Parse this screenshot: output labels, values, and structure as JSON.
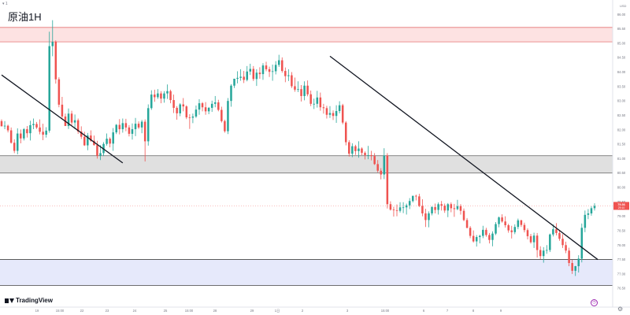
{
  "header": {
    "title": "原油1H",
    "mini_label": "▾ 1",
    "unit": "USD"
  },
  "watermark": {
    "text": "TradingView"
  },
  "icons": {
    "settings": "gear-icon",
    "time": "clock-icon"
  },
  "colors": {
    "up": "#26a69a",
    "down": "#ef5350",
    "red_zone_fill": "#fde2e2",
    "grey_zone_fill": "#e0e0e0",
    "blue_zone_fill": "#e6e9fb",
    "trendline": "#131722",
    "price_marker": "#ef5350"
  },
  "chart_data": {
    "type": "candlestick",
    "title": "原油1H",
    "ylim": [
      75.85,
      86.5
    ],
    "y_ticks": [
      "86.00",
      "85.50",
      "85.00",
      "84.50",
      "84.00",
      "83.50",
      "83.00",
      "82.50",
      "82.00",
      "81.50",
      "81.00",
      "80.50",
      "80.00",
      "79.50",
      "79.00",
      "78.50",
      "78.00",
      "77.50",
      "77.00",
      "76.50"
    ],
    "x_ticks": [
      "19",
      "15:00",
      "22",
      "23",
      "24",
      "25",
      "15:00",
      "28",
      "29",
      "1日",
      "2",
      "3",
      "15:00",
      "6",
      "7",
      "8",
      "9"
    ],
    "last_price": [
      "79.36",
      "29:10"
    ],
    "zones": [
      {
        "name": "resistance",
        "from": 85.05,
        "to": 85.55
      },
      {
        "name": "middle",
        "from": 80.5,
        "to": 81.1
      },
      {
        "name": "support",
        "from": 76.6,
        "to": 77.5
      }
    ],
    "trendlines": [
      {
        "from": {
          "x": "18",
          "y": 83.9
        },
        "to": {
          "x": "22",
          "y": 80.85
        }
      },
      {
        "from": {
          "x": "25",
          "y": 84.55
        },
        "to": {
          "x": "6",
          "y": 77.5
        }
      }
    ],
    "candles": [
      [
        82.3,
        82.36,
        82.12,
        82.12
      ],
      [
        82.12,
        82.3,
        82.02,
        82.14
      ],
      [
        82.14,
        82.18,
        81.91,
        81.98
      ],
      [
        81.98,
        82.08,
        81.52,
        81.55
      ],
      [
        81.55,
        81.67,
        81.19,
        81.27
      ],
      [
        81.27,
        82.05,
        81.15,
        81.87
      ],
      [
        81.87,
        82.01,
        81.53,
        81.7
      ],
      [
        81.7,
        82.06,
        81.63,
        82.02
      ],
      [
        82.02,
        82.13,
        81.73,
        81.88
      ],
      [
        81.88,
        82.31,
        81.63,
        82.16
      ],
      [
        82.16,
        82.39,
        82.02,
        82.2
      ],
      [
        82.2,
        82.27,
        82.03,
        82.08
      ],
      [
        82.08,
        82.36,
        81.84,
        81.93
      ],
      [
        81.93,
        82.21,
        81.64,
        81.83
      ],
      [
        81.83,
        82.09,
        81.73,
        81.97
      ],
      [
        81.97,
        85.4,
        81.9,
        84.9
      ],
      [
        84.9,
        85.8,
        84.55,
        85.05
      ],
      [
        85.05,
        85.1,
        83.6,
        83.75
      ],
      [
        83.75,
        83.82,
        82.78,
        82.87
      ],
      [
        82.87,
        83.14,
        82.37,
        82.46
      ],
      [
        82.46,
        82.56,
        82.13,
        82.13
      ],
      [
        82.13,
        82.74,
        82.03,
        82.56
      ],
      [
        82.56,
        82.66,
        82.16,
        82.25
      ],
      [
        82.25,
        82.53,
        82.02,
        82.33
      ],
      [
        82.33,
        82.39,
        81.86,
        81.94
      ],
      [
        81.94,
        82.12,
        81.68,
        81.76
      ],
      [
        81.76,
        81.93,
        81.44,
        81.46
      ],
      [
        81.46,
        81.89,
        81.29,
        81.8
      ],
      [
        81.8,
        81.98,
        81.58,
        81.62
      ],
      [
        81.62,
        81.8,
        81.45,
        81.47
      ],
      [
        81.47,
        81.62,
        81.0,
        81.1
      ],
      [
        81.1,
        81.47,
        80.95,
        81.19
      ],
      [
        81.19,
        81.57,
        81.09,
        81.51
      ],
      [
        81.51,
        81.87,
        81.45,
        81.69
      ],
      [
        81.69,
        81.74,
        81.39,
        81.52
      ],
      [
        81.52,
        82.06,
        81.27,
        81.91
      ],
      [
        81.91,
        82.2,
        81.85,
        82.17
      ],
      [
        82.17,
        82.37,
        81.84,
        82.02
      ],
      [
        82.02,
        82.39,
        81.9,
        82.23
      ],
      [
        82.23,
        82.38,
        81.95,
        82.08
      ],
      [
        82.08,
        82.16,
        81.77,
        81.86
      ],
      [
        81.86,
        82.22,
        81.66,
        82.02
      ],
      [
        82.02,
        82.41,
        81.78,
        82.21
      ],
      [
        82.21,
        82.29,
        82.03,
        82.08
      ],
      [
        82.08,
        82.34,
        81.88,
        82.28
      ],
      [
        82.28,
        82.36,
        80.9,
        81.6
      ],
      [
        81.6,
        82.88,
        81.45,
        82.75
      ],
      [
        82.75,
        83.37,
        82.69,
        83.22
      ],
      [
        83.22,
        83.39,
        82.97,
        83.13
      ],
      [
        83.13,
        83.41,
        83.07,
        83.26
      ],
      [
        83.26,
        83.34,
        82.92,
        83.08
      ],
      [
        83.08,
        83.34,
        82.94,
        83.26
      ],
      [
        83.26,
        83.57,
        83.07,
        83.34
      ],
      [
        83.34,
        83.39,
        82.92,
        83.03
      ],
      [
        83.03,
        83.22,
        82.58,
        82.76
      ],
      [
        82.76,
        82.82,
        82.35,
        82.57
      ],
      [
        82.57,
        82.92,
        82.47,
        82.88
      ],
      [
        82.88,
        83.1,
        82.64,
        82.81
      ],
      [
        82.81,
        82.85,
        82.37,
        82.43
      ],
      [
        82.43,
        82.54,
        82.03,
        82.42
      ],
      [
        82.42,
        82.56,
        82.23,
        82.46
      ],
      [
        82.46,
        82.84,
        82.41,
        82.7
      ],
      [
        82.7,
        83.06,
        82.52,
        82.92
      ],
      [
        82.92,
        82.96,
        82.64,
        82.78
      ],
      [
        82.78,
        82.96,
        82.52,
        82.64
      ],
      [
        82.64,
        82.79,
        82.54,
        82.76
      ],
      [
        82.76,
        83.01,
        82.62,
        82.9
      ],
      [
        82.9,
        83.17,
        82.78,
        82.95
      ],
      [
        82.95,
        83.04,
        82.64,
        82.69
      ],
      [
        82.69,
        82.8,
        82.25,
        82.3
      ],
      [
        82.3,
        82.35,
        81.9,
        81.95
      ],
      [
        81.95,
        83.1,
        81.85,
        83.0
      ],
      [
        83.0,
        83.58,
        82.8,
        83.53
      ],
      [
        83.53,
        83.77,
        83.45,
        83.77
      ],
      [
        83.77,
        84.03,
        83.61,
        83.8
      ],
      [
        83.8,
        84.1,
        83.7,
        83.84
      ],
      [
        83.84,
        84.04,
        83.62,
        83.73
      ],
      [
        83.73,
        84.21,
        83.68,
        84.02
      ],
      [
        84.02,
        84.29,
        83.9,
        84.11
      ],
      [
        84.11,
        84.21,
        83.69,
        83.76
      ],
      [
        83.76,
        84.1,
        83.52,
        83.98
      ],
      [
        83.98,
        84.17,
        83.77,
        83.93
      ],
      [
        83.93,
        84.31,
        83.73,
        84.23
      ],
      [
        84.23,
        84.36,
        84.03,
        84.1
      ],
      [
        84.1,
        84.19,
        83.83,
        84.01
      ],
      [
        84.01,
        84.26,
        83.7,
        84.03
      ],
      [
        84.03,
        84.38,
        83.92,
        84.25
      ],
      [
        84.25,
        84.6,
        84.18,
        84.41
      ],
      [
        84.41,
        84.51,
        83.98,
        84.04
      ],
      [
        84.04,
        84.16,
        83.65,
        83.86
      ],
      [
        83.86,
        84.1,
        83.69,
        83.89
      ],
      [
        83.89,
        84.0,
        83.45,
        83.51
      ],
      [
        83.51,
        83.81,
        83.32,
        83.39
      ],
      [
        83.39,
        83.68,
        83.31,
        83.41
      ],
      [
        83.41,
        83.55,
        82.98,
        83.17
      ],
      [
        83.17,
        83.68,
        83.02,
        83.53
      ],
      [
        83.53,
        83.71,
        83.16,
        83.23
      ],
      [
        83.23,
        83.36,
        82.82,
        82.9
      ],
      [
        82.9,
        83.08,
        82.72,
        82.9
      ],
      [
        82.9,
        83.35,
        82.77,
        83.12
      ],
      [
        83.12,
        83.29,
        82.66,
        82.78
      ],
      [
        82.78,
        82.9,
        82.56,
        82.75
      ],
      [
        82.75,
        82.83,
        82.39,
        82.52
      ],
      [
        82.52,
        82.82,
        82.41,
        82.58
      ],
      [
        82.58,
        82.67,
        82.34,
        82.48
      ],
      [
        82.48,
        82.85,
        82.24,
        82.65
      ],
      [
        82.65,
        82.99,
        82.57,
        82.85
      ],
      [
        82.85,
        82.9,
        82.19,
        82.25
      ],
      [
        82.25,
        82.3,
        81.46,
        81.57
      ],
      [
        81.57,
        81.64,
        81.07,
        81.17
      ],
      [
        81.17,
        81.53,
        81.05,
        81.43
      ],
      [
        81.43,
        81.48,
        81.13,
        81.26
      ],
      [
        81.26,
        81.6,
        81.03,
        81.35
      ],
      [
        81.35,
        81.39,
        81.12,
        81.2
      ],
      [
        81.2,
        81.25,
        80.97,
        81.12
      ],
      [
        81.12,
        81.44,
        80.98,
        81.12
      ],
      [
        81.12,
        81.27,
        80.94,
        81.09
      ],
      [
        81.09,
        81.19,
        80.78,
        80.81
      ],
      [
        80.81,
        80.95,
        80.52,
        80.58
      ],
      [
        80.58,
        80.67,
        80.28,
        80.45
      ],
      [
        80.45,
        81.36,
        80.29,
        81.11
      ],
      [
        81.11,
        81.19,
        79.27,
        79.42
      ],
      [
        79.42,
        79.52,
        79.2,
        79.23
      ],
      [
        79.23,
        79.33,
        78.99,
        79.21
      ],
      [
        79.21,
        79.41,
        79.0,
        79.19
      ],
      [
        79.19,
        79.49,
        79.13,
        79.31
      ],
      [
        79.31,
        79.49,
        79.11,
        79.31
      ],
      [
        79.31,
        79.44,
        79.06,
        79.38
      ],
      [
        79.38,
        79.63,
        79.25,
        79.53
      ],
      [
        79.53,
        79.71,
        79.48,
        79.71
      ],
      [
        79.71,
        79.75,
        79.55,
        79.69
      ],
      [
        79.69,
        79.78,
        79.32,
        79.36
      ],
      [
        79.36,
        79.59,
        79.0,
        79.1
      ],
      [
        79.1,
        79.26,
        78.63,
        78.87
      ],
      [
        78.87,
        79.17,
        78.62,
        79.1
      ],
      [
        79.1,
        79.35,
        79.03,
        79.32
      ],
      [
        79.32,
        79.44,
        79.1,
        79.22
      ],
      [
        79.22,
        79.48,
        79.06,
        79.42
      ],
      [
        79.42,
        79.53,
        79.2,
        79.37
      ],
      [
        79.37,
        79.44,
        79.12,
        79.2
      ],
      [
        79.2,
        79.46,
        78.97,
        79.42
      ],
      [
        79.42,
        79.48,
        79.14,
        79.28
      ],
      [
        79.28,
        79.43,
        78.98,
        79.25
      ],
      [
        79.25,
        79.57,
        79.21,
        79.35
      ],
      [
        79.35,
        79.42,
        79.06,
        79.19
      ],
      [
        79.19,
        79.27,
        78.83,
        78.87
      ],
      [
        78.87,
        78.94,
        78.58,
        78.6
      ],
      [
        78.6,
        78.66,
        78.24,
        78.32
      ],
      [
        78.32,
        78.51,
        78.09,
        78.13
      ],
      [
        78.13,
        78.35,
        77.95,
        78.28
      ],
      [
        78.28,
        78.36,
        78.06,
        78.32
      ],
      [
        78.32,
        78.67,
        78.24,
        78.53
      ],
      [
        78.53,
        78.6,
        78.29,
        78.35
      ],
      [
        78.35,
        78.42,
        78.06,
        78.18
      ],
      [
        78.18,
        78.48,
        77.96,
        78.4
      ],
      [
        78.4,
        78.8,
        78.35,
        78.73
      ],
      [
        78.73,
        78.99,
        78.62,
        78.96
      ],
      [
        78.96,
        79.07,
        78.78,
        78.82
      ],
      [
        78.82,
        79.0,
        78.61,
        78.69
      ],
      [
        78.69,
        78.74,
        78.43,
        78.51
      ],
      [
        78.51,
        78.67,
        78.23,
        78.45
      ],
      [
        78.45,
        78.72,
        78.38,
        78.63
      ],
      [
        78.63,
        78.92,
        78.55,
        78.86
      ],
      [
        78.86,
        78.88,
        78.63,
        78.7
      ],
      [
        78.7,
        78.78,
        78.44,
        78.52
      ],
      [
        78.52,
        78.58,
        78.2,
        78.31
      ],
      [
        78.31,
        78.39,
        78.05,
        78.1
      ],
      [
        78.1,
        78.43,
        77.9,
        78.33
      ],
      [
        78.33,
        78.42,
        77.57,
        77.83
      ],
      [
        77.83,
        77.96,
        77.51,
        77.62
      ],
      [
        77.62,
        77.93,
        77.39,
        77.81
      ],
      [
        77.81,
        78.0,
        77.7,
        77.83
      ],
      [
        77.83,
        78.4,
        77.76,
        78.37
      ],
      [
        78.37,
        78.72,
        78.3,
        78.55
      ],
      [
        78.55,
        78.76,
        78.34,
        78.42
      ],
      [
        78.42,
        78.5,
        78.15,
        78.22
      ],
      [
        78.22,
        78.38,
        77.9,
        78.0
      ],
      [
        78.0,
        78.12,
        77.72,
        77.81
      ],
      [
        77.81,
        77.91,
        77.27,
        77.38
      ],
      [
        77.38,
        77.49,
        77.0,
        77.11
      ],
      [
        77.11,
        77.28,
        76.93,
        77.27
      ],
      [
        77.27,
        77.65,
        77.05,
        77.53
      ],
      [
        77.53,
        78.75,
        77.4,
        78.6
      ],
      [
        78.6,
        79.2,
        78.45,
        79.05
      ],
      [
        79.05,
        79.25,
        78.9,
        79.1
      ],
      [
        79.1,
        79.35,
        79.02,
        79.28
      ],
      [
        79.28,
        79.45,
        79.2,
        79.36
      ]
    ]
  }
}
